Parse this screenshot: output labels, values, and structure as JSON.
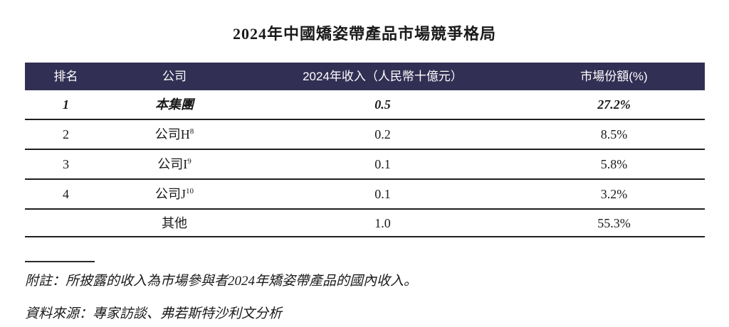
{
  "title": "2024年中國矯姿帶產品市場競爭格局",
  "colors": {
    "header_bg": "#322f54",
    "header_text": "#ffffff",
    "body_text": "#1a1a1a"
  },
  "table": {
    "headers": {
      "rank": "排名",
      "company": "公司",
      "revenue": "2024年收入（人民幣十億元）",
      "share": "市場份額(%)"
    },
    "rows": [
      {
        "rank": "1",
        "company": "本集團",
        "sup": "",
        "revenue": "0.5",
        "share": "27.2%"
      },
      {
        "rank": "2",
        "company": "公司H",
        "sup": "8",
        "revenue": "0.2",
        "share": "8.5%"
      },
      {
        "rank": "3",
        "company": "公司I",
        "sup": "9",
        "revenue": "0.1",
        "share": "5.8%"
      },
      {
        "rank": "4",
        "company": "公司J",
        "sup": "10",
        "revenue": "0.1",
        "share": "3.2%"
      },
      {
        "rank": "",
        "company": "其他",
        "sup": "",
        "revenue": "1.0",
        "share": "55.3%"
      }
    ]
  },
  "notes": {
    "footnote": "附註：所披露的收入為市場參與者2024年矯姿帶產品的國內收入。",
    "source": "資料來源：專家訪談、弗若斯特沙利文分析"
  }
}
